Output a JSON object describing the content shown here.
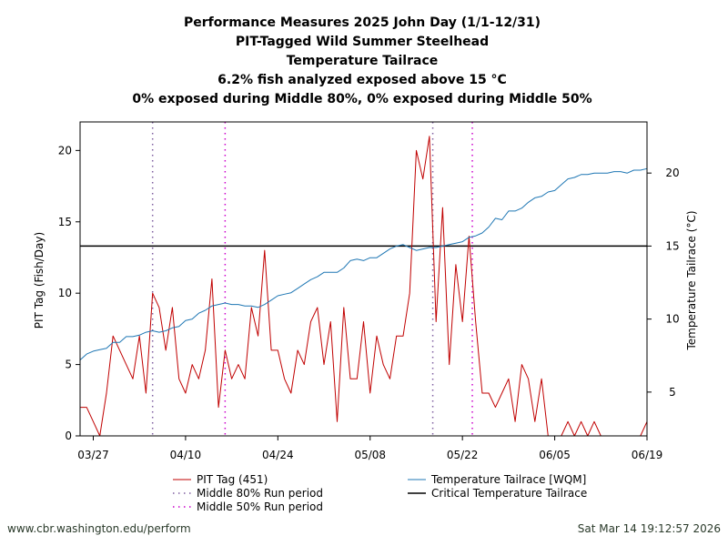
{
  "chart_data": {
    "type": "line",
    "title_lines": [
      "Performance Measures 2025 John Day (1/1-12/31)",
      "PIT-Tagged Wild Summer Steelhead",
      "Temperature Tailrace",
      "6.2% fish analyzed exposed above 15 °C",
      "0% exposed during Middle 80%, 0% exposed during Middle 50%"
    ],
    "ylabel_left": "PIT Tag (Fish/Day)",
    "ylabel_right": "Temperature Tailrace (°C)",
    "x_range": [
      0,
      86
    ],
    "y_left_range": [
      0,
      22
    ],
    "y_right_range": [
      2,
      23.5
    ],
    "x_ticks": [
      {
        "label": "03/27",
        "x": 2
      },
      {
        "label": "04/10",
        "x": 16
      },
      {
        "label": "04/24",
        "x": 30
      },
      {
        "label": "05/08",
        "x": 44
      },
      {
        "label": "05/22",
        "x": 58
      },
      {
        "label": "06/05",
        "x": 72
      },
      {
        "label": "06/19",
        "x": 86
      }
    ],
    "y_left_ticks": [
      0,
      5,
      10,
      15,
      20
    ],
    "y_right_ticks": [
      5,
      10,
      15,
      20
    ],
    "critical_temperature": 15,
    "middle80_lines": [
      11,
      53.5
    ],
    "middle50_lines": [
      22,
      59.5
    ],
    "series": [
      {
        "name": "PIT Tag (451)",
        "axis": "left",
        "color": "#c00000",
        "x": [
          0,
          1,
          2,
          3,
          4,
          5,
          6,
          7,
          8,
          9,
          10,
          11,
          12,
          13,
          14,
          15,
          16,
          17,
          18,
          19,
          20,
          21,
          22,
          23,
          24,
          25,
          26,
          27,
          28,
          29,
          30,
          31,
          32,
          33,
          34,
          35,
          36,
          37,
          38,
          39,
          40,
          41,
          42,
          43,
          44,
          45,
          46,
          47,
          48,
          49,
          50,
          51,
          52,
          53,
          54,
          55,
          56,
          57,
          58,
          59,
          60,
          61,
          62,
          63,
          64,
          65,
          66,
          67,
          68,
          69,
          70,
          71,
          72,
          73,
          74,
          75,
          76,
          77,
          78,
          79,
          80,
          81,
          82,
          83,
          84,
          85,
          86
        ],
        "values": [
          2,
          2,
          1,
          0,
          3,
          7,
          6,
          5,
          4,
          7,
          3,
          10,
          9,
          6,
          9,
          4,
          3,
          5,
          4,
          6,
          11,
          2,
          6,
          4,
          5,
          4,
          9,
          7,
          13,
          6,
          6,
          4,
          3,
          6,
          5,
          8,
          9,
          5,
          8,
          1,
          9,
          4,
          4,
          8,
          3,
          7,
          5,
          4,
          7,
          7,
          10,
          20,
          18,
          21,
          8,
          16,
          5,
          12,
          8,
          14,
          8,
          3,
          3,
          2,
          3,
          4,
          1,
          5,
          4,
          1,
          4,
          0,
          0,
          0,
          1,
          0,
          1,
          0,
          1,
          0,
          0,
          0,
          0,
          0,
          0,
          0,
          1
        ]
      },
      {
        "name": "Temperature Tailrace [WQM]",
        "axis": "right",
        "color": "#1f77b4",
        "x": [
          0,
          1,
          2,
          3,
          4,
          5,
          6,
          7,
          8,
          9,
          10,
          11,
          12,
          13,
          14,
          15,
          16,
          17,
          18,
          19,
          20,
          21,
          22,
          23,
          24,
          25,
          26,
          27,
          28,
          29,
          30,
          31,
          32,
          33,
          34,
          35,
          36,
          37,
          38,
          39,
          40,
          41,
          42,
          43,
          44,
          45,
          46,
          47,
          48,
          49,
          50,
          51,
          52,
          53,
          54,
          55,
          56,
          57,
          58,
          59,
          60,
          61,
          62,
          63,
          64,
          65,
          66,
          67,
          68,
          69,
          70,
          71,
          72,
          73,
          74,
          75,
          76,
          77,
          78,
          79,
          80,
          81,
          82,
          83,
          84,
          85,
          86
        ],
        "values": [
          7.2,
          7.6,
          7.8,
          7.9,
          8.0,
          8.4,
          8.4,
          8.8,
          8.8,
          8.9,
          9.1,
          9.2,
          9.1,
          9.2,
          9.4,
          9.5,
          9.9,
          10.0,
          10.4,
          10.6,
          10.9,
          11.0,
          11.1,
          11.0,
          11.0,
          10.9,
          10.9,
          10.8,
          11.0,
          11.3,
          11.6,
          11.7,
          11.8,
          12.1,
          12.4,
          12.7,
          12.9,
          13.2,
          13.2,
          13.2,
          13.5,
          14.0,
          14.1,
          14.0,
          14.2,
          14.2,
          14.5,
          14.8,
          15.0,
          15.1,
          14.9,
          14.7,
          14.8,
          14.9,
          14.9,
          15.0,
          15.1,
          15.2,
          15.3,
          15.6,
          15.7,
          15.9,
          16.3,
          16.9,
          16.8,
          17.4,
          17.4,
          17.6,
          18.0,
          18.3,
          18.4,
          18.7,
          18.8,
          19.2,
          19.6,
          19.7,
          19.9,
          19.9,
          20.0,
          20.0,
          20.0,
          20.1,
          20.1,
          20.0,
          20.2,
          20.2,
          20.3
        ]
      },
      {
        "name": "Middle 80% Run period",
        "style": "dotted",
        "color": "#7f5fa0"
      },
      {
        "name": "Middle 50% Run period",
        "style": "dotted",
        "color": "#cc00cc"
      },
      {
        "name": "Critical Temperature Tailrace",
        "style": "solid",
        "color": "#000000"
      }
    ]
  },
  "legend": {
    "pit": "PIT Tag (451)",
    "m80": "Middle 80% Run period",
    "m50": "Middle 50% Run period",
    "temp": "Temperature Tailrace [WQM]",
    "crit": "Critical Temperature Tailrace"
  },
  "footer": {
    "left": "www.cbr.washington.edu/perform",
    "right": "Sat Mar 14 19:12:57 2026"
  }
}
